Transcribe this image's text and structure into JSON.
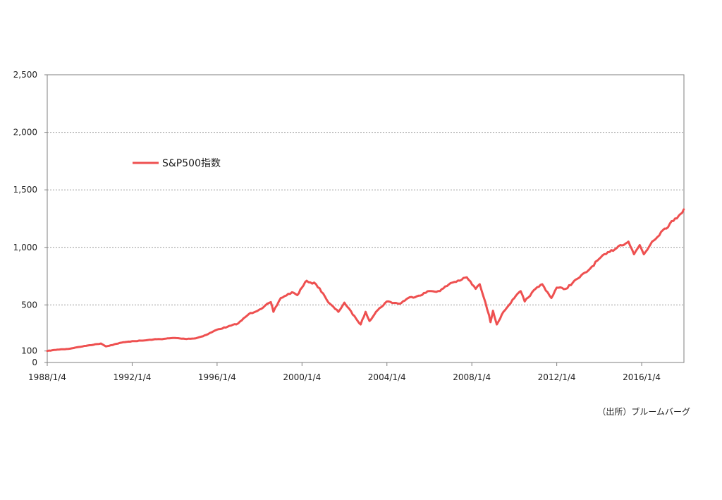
{
  "chart_data": {
    "type": "line",
    "legend": {
      "position": "top-left",
      "label": "S&P500指数"
    },
    "source_note": "（出所）ブルームバーグ",
    "grid": true,
    "ylim": [
      0,
      2500
    ],
    "y_ticks": [
      {
        "value": 0,
        "label": "0"
      },
      {
        "value": 100,
        "label": "100"
      },
      {
        "value": 500,
        "label": "500"
      },
      {
        "value": 1000,
        "label": "1,000"
      },
      {
        "value": 1500,
        "label": "1,500"
      },
      {
        "value": 2000,
        "label": "2,000"
      },
      {
        "value": 2500,
        "label": "2,500"
      }
    ],
    "xlim": [
      "1988-01-04",
      "2017-12-31"
    ],
    "x_ticks": [
      {
        "value": "1988-01-04",
        "label": "1988/1/4"
      },
      {
        "value": "1992-01-04",
        "label": "1992/1/4"
      },
      {
        "value": "1996-01-04",
        "label": "1996/1/4"
      },
      {
        "value": "2000-01-04",
        "label": "2000/1/4"
      },
      {
        "value": "2004-01-04",
        "label": "2004/1/4"
      },
      {
        "value": "2008-01-04",
        "label": "2008/1/4"
      },
      {
        "value": "2012-01-04",
        "label": "2012/1/4"
      },
      {
        "value": "2016-01-04",
        "label": "2016/1/4"
      }
    ],
    "color": "#ee5050",
    "series": [
      {
        "name": "S&P500指数",
        "x": [
          "1988-01-04",
          "1988-07-01",
          "1989-01-03",
          "1989-07-03",
          "1990-01-02",
          "1990-07-16",
          "1990-10-11",
          "1991-01-02",
          "1991-07-01",
          "1992-01-02",
          "1992-07-01",
          "1993-01-04",
          "1993-07-01",
          "1994-01-03",
          "1994-07-01",
          "1995-01-03",
          "1995-07-03",
          "1996-01-02",
          "1996-07-01",
          "1997-01-02",
          "1997-07-01",
          "1998-01-02",
          "1998-07-17",
          "1998-08-31",
          "1999-01-04",
          "1999-07-16",
          "1999-10-15",
          "2000-01-03",
          "2000-03-24",
          "2000-09-01",
          "2001-01-02",
          "2001-04-04",
          "2001-09-21",
          "2002-01-02",
          "2002-07-23",
          "2002-10-09",
          "2003-01-02",
          "2003-03-11",
          "2003-07-01",
          "2004-01-02",
          "2004-08-12",
          "2005-01-03",
          "2005-07-01",
          "2006-01-03",
          "2006-07-03",
          "2007-01-03",
          "2007-07-16",
          "2007-10-09",
          "2008-03-10",
          "2008-05-19",
          "2008-10-27",
          "2008-11-20",
          "2009-01-02",
          "2009-03-09",
          "2009-07-01",
          "2010-01-04",
          "2010-04-23",
          "2010-07-02",
          "2011-01-03",
          "2011-04-29",
          "2011-10-03",
          "2012-01-03",
          "2012-06-04",
          "2013-01-02",
          "2013-07-01",
          "2014-01-02",
          "2014-07-01",
          "2015-01-02",
          "2015-05-21",
          "2015-08-25",
          "2015-12-01",
          "2016-02-11",
          "2016-07-01",
          "2017-01-03",
          "2017-07-03",
          "2017-12-29"
        ],
        "values": [
          100,
          112,
          118,
          135,
          150,
          165,
          140,
          150,
          172,
          185,
          190,
          200,
          205,
          213,
          205,
          210,
          240,
          285,
          310,
          340,
          420,
          460,
          525,
          440,
          560,
          610,
          585,
          650,
          710,
          680,
          600,
          520,
          440,
          520,
          380,
          330,
          440,
          360,
          440,
          530,
          510,
          560,
          580,
          620,
          620,
          690,
          720,
          740,
          640,
          680,
          410,
          350,
          450,
          330,
          440,
          560,
          620,
          530,
          640,
          680,
          560,
          650,
          640,
          730,
          800,
          900,
          960,
          1020,
          1050,
          940,
          1020,
          940,
          1050,
          1150,
          1230,
          1330
        ]
      }
    ]
  }
}
